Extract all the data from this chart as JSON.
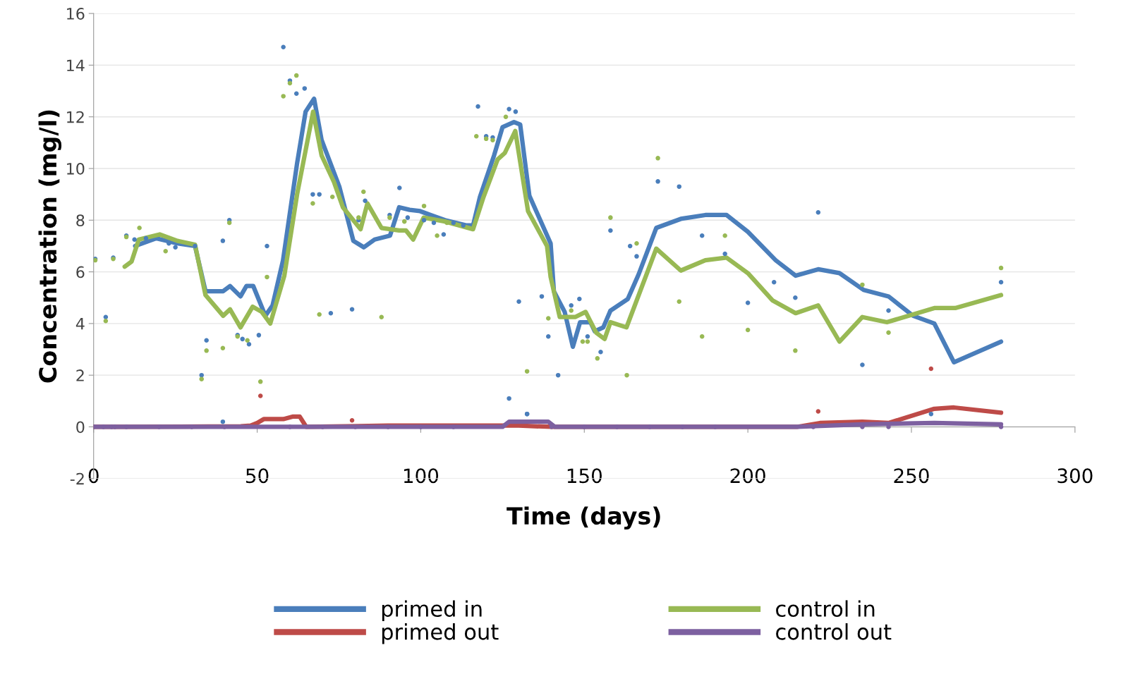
{
  "chart_data": {
    "type": "line",
    "xlabel": "Time (days)",
    "ylabel": "Concentration (mg/l)",
    "xlim": [
      0,
      300
    ],
    "xticks": [
      0,
      50,
      100,
      150,
      200,
      250,
      300
    ],
    "ylim": [
      -2,
      16
    ],
    "yticks": [
      -2,
      0,
      2,
      4,
      6,
      8,
      10,
      12,
      14,
      16
    ],
    "grid": "y",
    "legend": "bottom",
    "marker": "none",
    "line_style": "solid",
    "series": [
      {
        "type": "scatter",
        "color": "#4a7ebb",
        "marker": "circle",
        "x": [
          0.5,
          3.7,
          6,
          10,
          12.5,
          16,
          23,
          25,
          31,
          33,
          34.5,
          39.5,
          41.5,
          44,
          45.5,
          47.5,
          50.5,
          53,
          58,
          60,
          62,
          64.5,
          67,
          69,
          72.5,
          79,
          81,
          83,
          90.5,
          93.5,
          96,
          101,
          104,
          107,
          110,
          113,
          117.5,
          120,
          122,
          127,
          129,
          130,
          132.5,
          137,
          139,
          142,
          146,
          148.5,
          151,
          155,
          158,
          164,
          166,
          172.5,
          179,
          186,
          193,
          200,
          208,
          214.5,
          221.5,
          235,
          243,
          277.4,
          127,
          132.5,
          256,
          39.5
        ],
        "values": [
          6.5,
          4.25,
          6.55,
          7.4,
          7.25,
          7.3,
          7.1,
          6.95,
          7.0,
          2.0,
          3.35,
          7.2,
          8.0,
          3.55,
          3.4,
          3.2,
          3.55,
          7.0,
          14.7,
          13.4,
          12.9,
          13.1,
          9.0,
          9.0,
          4.4,
          4.55,
          8.0,
          8.75,
          8.2,
          9.25,
          8.1,
          8.0,
          7.9,
          7.45,
          7.9,
          7.8,
          12.4,
          11.25,
          11.2,
          12.3,
          12.2,
          4.85,
          0.5,
          5.05,
          3.5,
          2.0,
          4.7,
          4.95,
          3.5,
          2.9,
          7.6,
          7.0,
          6.6,
          9.5,
          9.3,
          7.4,
          6.7,
          4.8,
          5.6,
          5.0,
          8.3,
          2.4,
          4.5,
          5.6,
          1.1,
          0.5,
          0.5,
          0.2
        ]
      },
      {
        "type": "scatter",
        "color": "#98b954",
        "marker": "circle",
        "x": [
          0.5,
          3.7,
          6,
          10,
          14,
          22,
          33,
          34.5,
          39.5,
          41.5,
          44,
          47,
          51,
          53,
          58,
          60,
          62,
          67,
          69,
          73,
          81,
          82.5,
          88,
          90.5,
          95,
          101,
          105,
          108,
          117,
          120,
          122,
          126,
          132.5,
          139,
          146,
          149.5,
          151,
          154,
          158,
          163,
          166,
          172.5,
          179,
          186,
          193,
          200,
          214.5,
          235,
          243,
          277.4
        ],
        "values": [
          6.45,
          4.1,
          6.5,
          7.35,
          7.7,
          6.8,
          1.85,
          2.95,
          3.05,
          7.9,
          3.5,
          3.35,
          1.75,
          5.8,
          12.8,
          13.3,
          13.6,
          8.65,
          4.35,
          8.9,
          8.1,
          9.1,
          4.25,
          8.1,
          7.95,
          8.55,
          7.4,
          7.9,
          11.25,
          11.15,
          11.1,
          12.0,
          2.15,
          4.2,
          4.5,
          3.3,
          3.3,
          2.65,
          8.1,
          2.0,
          7.1,
          10.4,
          4.85,
          3.5,
          7.4,
          3.75,
          2.95,
          5.5,
          3.65,
          6.15
        ]
      },
      {
        "type": "scatter",
        "color": "#be4b48",
        "marker": "circle",
        "x": [
          51,
          79,
          221.5,
          256
        ],
        "values": [
          1.2,
          0.25,
          0.6,
          2.25
        ]
      },
      {
        "type": "scatter",
        "color": "#7d60a0",
        "marker": "circle",
        "x": [
          0,
          3,
          5.5,
          6.5,
          10,
          20,
          30,
          40,
          60,
          70,
          80,
          90,
          100,
          110,
          140,
          150,
          160,
          170,
          180,
          190,
          220,
          235,
          243,
          277.4
        ],
        "values": [
          0,
          0,
          0,
          0,
          0,
          0,
          0,
          0,
          0,
          0,
          0,
          0,
          0,
          0,
          0,
          0,
          0,
          0,
          0,
          0,
          0,
          0,
          0,
          0
        ]
      },
      {
        "name": "primed in",
        "color": "#4a7ebb",
        "x": [
          12.7,
          19.1,
          25.6,
          31,
          34.2,
          39.6,
          41.7,
          44.9,
          46.7,
          48.8,
          52.5,
          54.7,
          57.9,
          62.2,
          64.8,
          67.4,
          69.7,
          75.1,
          79.4,
          82.6,
          85.9,
          90.6,
          93.4,
          96.6,
          99.8,
          103,
          107.4,
          113.8,
          116,
          118.1,
          122.4,
          125,
          128.5,
          130.4,
          133.2,
          139.7,
          140.7,
          144,
          146.5,
          148.7,
          151.9,
          153.2,
          155.8,
          158,
          163.3,
          166.6,
          172,
          179.5,
          187,
          193.5,
          200,
          208.5,
          214.6,
          221.5,
          228,
          235.4,
          243,
          250.5,
          257,
          263,
          277.4
        ],
        "values": [
          7.0,
          7.3,
          7.1,
          7.0,
          5.25,
          5.25,
          5.45,
          5.05,
          5.45,
          5.45,
          4.3,
          4.7,
          6.45,
          10.2,
          12.2,
          12.7,
          11.1,
          9.3,
          7.2,
          6.95,
          7.25,
          7.4,
          8.5,
          8.4,
          8.35,
          8.2,
          8.0,
          7.8,
          7.8,
          8.9,
          10.5,
          11.6,
          11.8,
          11.7,
          8.95,
          7.1,
          5.25,
          4.45,
          3.1,
          4.05,
          4.05,
          3.7,
          3.85,
          4.5,
          4.95,
          5.9,
          7.7,
          8.05,
          8.2,
          8.2,
          7.55,
          6.45,
          5.85,
          6.1,
          5.95,
          5.3,
          5.05,
          4.3,
          4.0,
          2.5,
          3.3
        ]
      },
      {
        "name": "primed out",
        "color": "#be4b48",
        "x": [
          0,
          10,
          45,
          48,
          50,
          52,
          58,
          61,
          63,
          65,
          90,
          130,
          140,
          215,
          222,
          235,
          243,
          257,
          263,
          277.4
        ],
        "values": [
          0,
          0,
          0.02,
          0.05,
          0.15,
          0.3,
          0.3,
          0.4,
          0.4,
          0.0,
          0.05,
          0.05,
          0.0,
          0,
          0.15,
          0.2,
          0.15,
          0.7,
          0.75,
          0.55
        ]
      },
      {
        "name": "control in",
        "color": "#98b954",
        "x": [
          9.5,
          11.6,
          13.8,
          20.2,
          25.6,
          31,
          34.2,
          39.6,
          41.7,
          44.9,
          48.6,
          51.4,
          54,
          58.3,
          62.2,
          67.1,
          69.7,
          73.4,
          76.2,
          81.6,
          83.7,
          88,
          93.4,
          95.5,
          97.7,
          100.9,
          107.4,
          111.7,
          116,
          119.2,
          123.5,
          125.7,
          128.9,
          132.8,
          138.6,
          139.7,
          142.5,
          147.2,
          150.4,
          153.6,
          156.2,
          158,
          162.9,
          172,
          179.5,
          187,
          193.5,
          200,
          207.5,
          214.6,
          221.5,
          228,
          235,
          242.5,
          257,
          263.4,
          277.4
        ],
        "values": [
          6.2,
          6.4,
          7.25,
          7.45,
          7.2,
          7.05,
          5.1,
          4.3,
          4.55,
          3.85,
          4.65,
          4.45,
          4.0,
          5.85,
          9.0,
          12.2,
          10.5,
          9.5,
          8.5,
          7.65,
          8.65,
          7.7,
          7.6,
          7.6,
          7.25,
          8.1,
          7.95,
          7.8,
          7.65,
          8.9,
          10.35,
          10.6,
          11.45,
          8.35,
          7.0,
          5.8,
          4.25,
          4.25,
          4.45,
          3.65,
          3.4,
          4.05,
          3.85,
          6.9,
          6.05,
          6.45,
          6.55,
          5.95,
          4.9,
          4.4,
          4.7,
          3.3,
          4.25,
          4.05,
          4.6,
          4.6,
          5.1
        ]
      },
      {
        "name": "control out",
        "color": "#7d60a0",
        "x": [
          0,
          125,
          127,
          139,
          141,
          215,
          235,
          257,
          277.4
        ],
        "values": [
          0,
          0,
          0.2,
          0.2,
          0,
          0,
          0.1,
          0.15,
          0.1
        ]
      }
    ]
  }
}
